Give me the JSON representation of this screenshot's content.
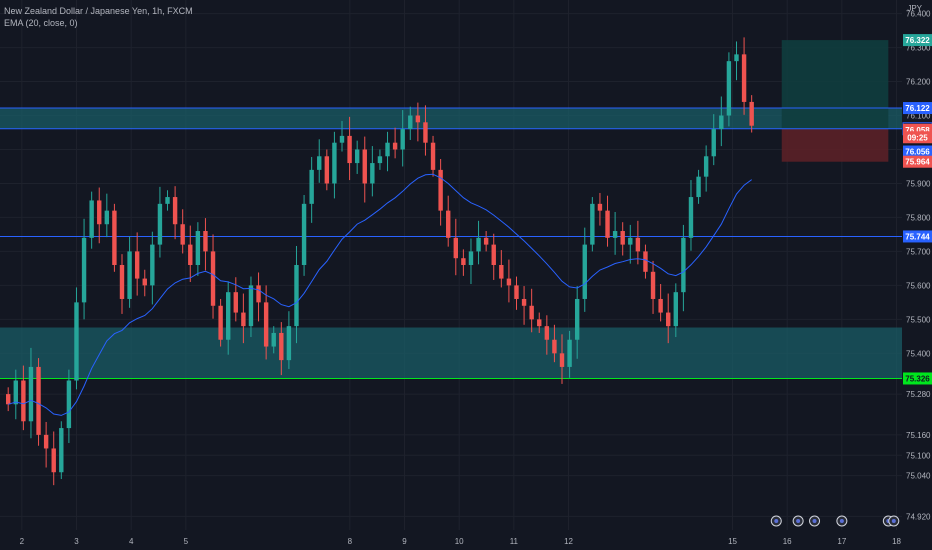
{
  "header": {
    "symbol_line": "New Zealand Dollar / Japanese Yen, 1h, FXCM",
    "indicator_line": "EMA (20, close, 0)",
    "currency": "JPY"
  },
  "colors": {
    "background": "#131722",
    "grid": "#1e222d",
    "up": "#26a69a",
    "down": "#ef5350",
    "ema": "#2962ff",
    "zone_fill": "#1a5c66",
    "blue_line": "#2962ff",
    "green_line": "#00e61e",
    "target_fill": "#0f3d3e",
    "stop_fill": "#5b2027"
  },
  "chart_data": {
    "type": "candlestick",
    "title": "New Zealand Dollar / Japanese Yen, 1h, FXCM",
    "xlabel": "",
    "ylabel": "",
    "ylim": [
      74.88,
      76.44
    ],
    "grid": true,
    "y_ticks": [
      "76.400",
      "76.300",
      "76.200",
      "76.100",
      "76.000",
      "75.900",
      "75.800",
      "75.700",
      "75.600",
      "75.500",
      "75.400",
      "75.280",
      "75.160",
      "75.100",
      "75.040",
      "74.920"
    ],
    "x_ticks": [
      "2",
      "3",
      "4",
      "5",
      "8",
      "9",
      "10",
      "11",
      "12",
      "15",
      "16",
      "17",
      "18"
    ],
    "x_tick_days": [
      2,
      3,
      4,
      5,
      8,
      9,
      10,
      11,
      12,
      15,
      16,
      17,
      18
    ],
    "closes": [
      75.25,
      75.32,
      75.2,
      75.36,
      75.16,
      75.12,
      75.05,
      75.18,
      75.32,
      75.55,
      75.74,
      75.85,
      75.78,
      75.82,
      75.66,
      75.56,
      75.7,
      75.62,
      75.6,
      75.72,
      75.84,
      75.86,
      75.78,
      75.72,
      75.66,
      75.76,
      75.7,
      75.54,
      75.44,
      75.58,
      75.52,
      75.48,
      75.6,
      75.55,
      75.42,
      75.46,
      75.38,
      75.48,
      75.66,
      75.84,
      75.94,
      75.98,
      75.9,
      76.02,
      76.04,
      75.96,
      76.0,
      75.9,
      75.96,
      75.98,
      76.02,
      76.0,
      76.06,
      76.1,
      76.08,
      76.02,
      75.94,
      75.82,
      75.74,
      75.68,
      75.66,
      75.7,
      75.74,
      75.72,
      75.66,
      75.62,
      75.6,
      75.56,
      75.54,
      75.5,
      75.48,
      75.44,
      75.4,
      75.36,
      75.44,
      75.56,
      75.72,
      75.84,
      75.82,
      75.74,
      75.76,
      75.72,
      75.74,
      75.7,
      75.64,
      75.56,
      75.52,
      75.48,
      75.58,
      75.74,
      75.86,
      75.92,
      75.98,
      76.06,
      76.1,
      76.26,
      76.28,
      76.14,
      76.07
    ],
    "ema_note": "EMA (20, close, 0)",
    "levels": [
      {
        "label": "76.122",
        "value": 76.122,
        "color": "#2962ff"
      },
      {
        "label": "76.061",
        "value": 76.061,
        "color": "#2962ff"
      },
      {
        "label": "75.744",
        "value": 75.744,
        "color": "#2962ff"
      },
      {
        "label": "75.326",
        "value": 75.326,
        "color": "#00e61e"
      }
    ],
    "price_tags": [
      {
        "label": "76.322",
        "value": 76.322,
        "bg": "#26a69a",
        "fg": "#ffffff"
      },
      {
        "label": "76.122",
        "value": 76.122,
        "bg": "#2962ff",
        "fg": "#ffffff"
      },
      {
        "label": "76.061",
        "value": 76.061,
        "bg": "#131722",
        "fg": "#ffffff",
        "border": "#2962ff"
      },
      {
        "label": "76.058",
        "value": 76.058,
        "bg": "#ef5350",
        "fg": "#ffffff"
      },
      {
        "label": "09:25",
        "value": 76.036,
        "bg": "#ef5350",
        "fg": "#ffffff"
      },
      {
        "label": "76.056",
        "value": 75.994,
        "bg": "#2962ff",
        "fg": "#ffffff"
      },
      {
        "label": "75.964",
        "value": 75.964,
        "bg": "#ef5350",
        "fg": "#ffffff"
      },
      {
        "label": "75.744",
        "value": 75.744,
        "bg": "#2962ff",
        "fg": "#ffffff"
      },
      {
        "label": "75.326",
        "value": 75.326,
        "bg": "#00e61e",
        "fg": "#131722"
      }
    ],
    "zones": [
      {
        "name": "upper-resistance-zone",
        "from": 76.061,
        "to": 76.122
      },
      {
        "name": "lower-support-zone",
        "from": 75.326,
        "to": 75.476
      }
    ],
    "position": {
      "entry": 76.061,
      "target": 76.322,
      "stop": 75.964,
      "start_day": 15.9,
      "end_day": 17.85
    },
    "event_markers": [
      {
        "icon": "flag-icon",
        "day": 15.8
      },
      {
        "icon": "flag-icon",
        "day": 16.2
      },
      {
        "icon": "flag-icon",
        "day": 16.5
      },
      {
        "icon": "flag-icon",
        "day": 17.0
      },
      {
        "icon": "flag-icon",
        "day": 17.85
      },
      {
        "icon": "flag-icon",
        "day": 17.95
      }
    ]
  }
}
